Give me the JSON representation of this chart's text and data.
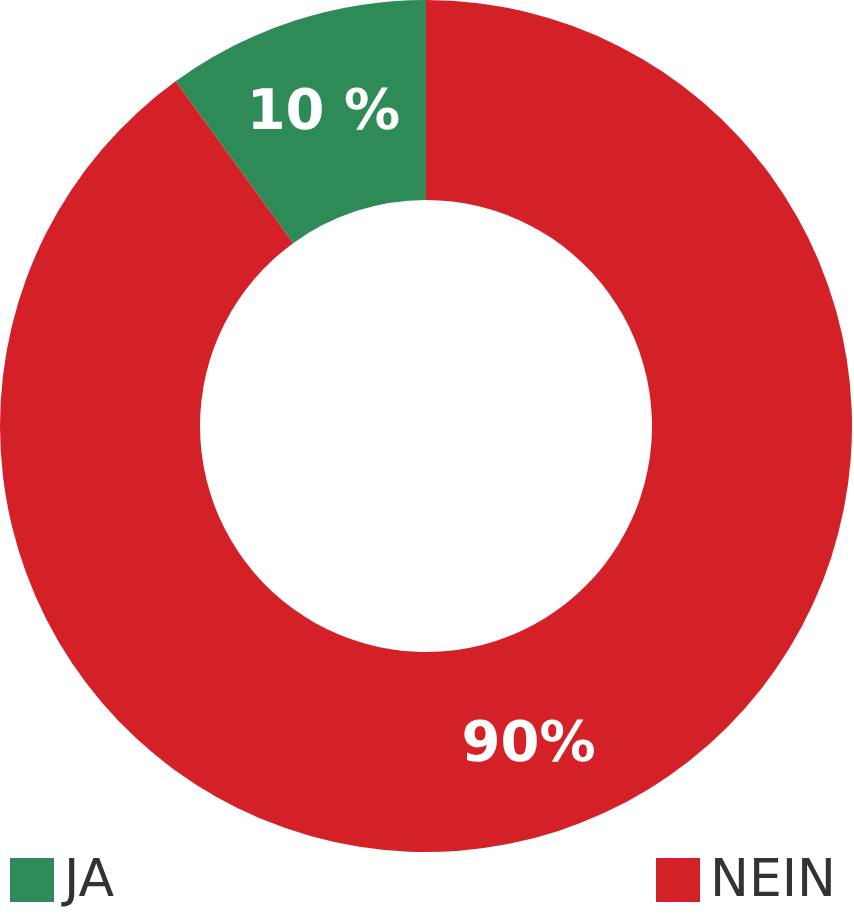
{
  "chart_data": {
    "type": "donut",
    "categories": [
      "JA",
      "NEIN"
    ],
    "values": [
      10,
      90
    ],
    "value_labels": [
      "10 %",
      "90%"
    ],
    "colors": [
      "#2e8b57",
      "#d42027"
    ],
    "legend": "bottom"
  }
}
